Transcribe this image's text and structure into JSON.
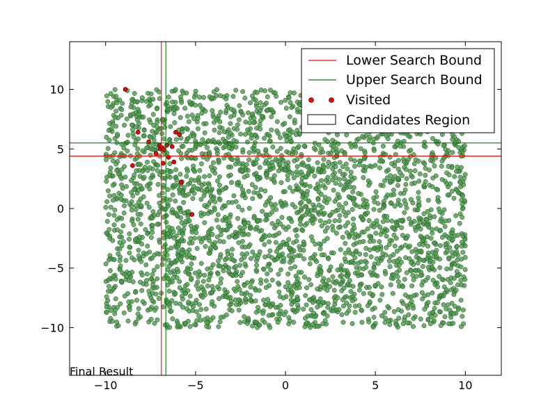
{
  "chart_data": {
    "type": "scatter",
    "caption": "Final Result",
    "xlim": [
      -12,
      12
    ],
    "ylim": [
      -14,
      14
    ],
    "x_ticks": [
      -10,
      -5,
      0,
      5,
      10
    ],
    "y_ticks": [
      -10,
      -5,
      0,
      5,
      10
    ],
    "x_tick_labels": [
      "−10",
      "−5",
      "0",
      "5",
      "10"
    ],
    "y_tick_labels": [
      "−10",
      "−5",
      "0",
      "5",
      "10"
    ],
    "grid": false,
    "legend_position": "top-right",
    "legend": [
      {
        "label": "Lower Search Bound",
        "kind": "line",
        "color": "#ff0000"
      },
      {
        "label": "Upper Search Bound",
        "kind": "line",
        "color": "#008000"
      },
      {
        "label": "Visited",
        "kind": "marker",
        "color": "#ff0000"
      },
      {
        "label": "Candidates Region",
        "kind": "patch",
        "color": "#ffffff"
      }
    ],
    "lower_bound": {
      "x": -6.9,
      "y": 4.4,
      "color": "#ff0000"
    },
    "upper_bound": {
      "x": -6.65,
      "y": 5.5,
      "color": "#008000"
    },
    "candidates_cloud": {
      "x_range": [
        -10,
        10
      ],
      "y_range": [
        -10,
        10
      ],
      "count": 3000,
      "color": "#4a9a4a",
      "edge_color": "#1e4d1e"
    },
    "visited": {
      "color": "#ff0000",
      "points": [
        [
          -8.9,
          10.0
        ],
        [
          -8.2,
          6.4
        ],
        [
          -7.6,
          5.6
        ],
        [
          -7.0,
          5.3
        ],
        [
          -6.95,
          5.0
        ],
        [
          -6.85,
          5.1
        ],
        [
          -6.75,
          4.95
        ],
        [
          -6.6,
          5.3
        ],
        [
          -6.3,
          5.2
        ],
        [
          -6.1,
          6.4
        ],
        [
          -5.9,
          6.2
        ],
        [
          -6.2,
          3.9
        ],
        [
          -6.8,
          3.8
        ],
        [
          -5.8,
          2.2
        ],
        [
          -5.2,
          -0.5
        ],
        [
          -7.2,
          4.6
        ],
        [
          -8.5,
          3.6
        ],
        [
          -6.5,
          4.3
        ]
      ]
    }
  }
}
